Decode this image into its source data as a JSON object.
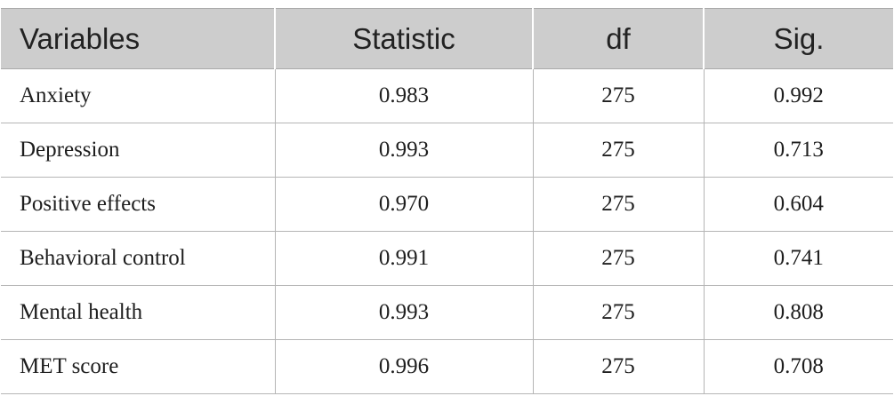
{
  "table": {
    "headers": [
      "Variables",
      "Statistic",
      "df",
      "Sig."
    ],
    "rows": [
      [
        "Anxiety",
        "0.983",
        "275",
        "0.992"
      ],
      [
        "Depression",
        "0.993",
        "275",
        "0.713"
      ],
      [
        "Positive effects",
        "0.970",
        "275",
        "0.604"
      ],
      [
        "Behavioral control",
        "0.991",
        "275",
        "0.741"
      ],
      [
        "Mental health",
        "0.993",
        "275",
        "0.808"
      ],
      [
        "MET score",
        "0.996",
        "275",
        "0.708"
      ]
    ]
  },
  "colors": {
    "header_background": "#cdcdcd",
    "grid_line": "#b5b5b5",
    "text": "#1e1e1e"
  }
}
